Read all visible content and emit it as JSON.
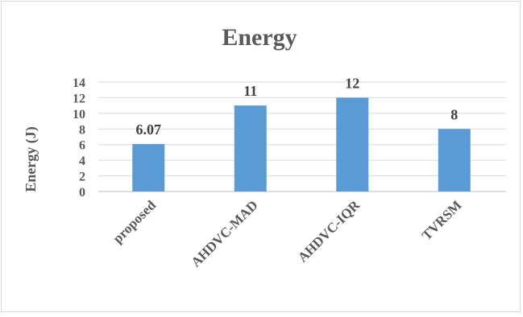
{
  "chart_data": {
    "type": "bar",
    "title": "Energy",
    "ylabel": "Energy (J)",
    "xlabel": "",
    "categories": [
      "proposed",
      "AHDVC-MAD",
      "AHDVC-IQR",
      "TVRSM"
    ],
    "values": [
      6.07,
      11,
      12,
      8
    ],
    "data_labels": [
      "6.07",
      "11",
      "12",
      "8"
    ],
    "ylim": [
      0,
      14
    ],
    "yticks": [
      0,
      2,
      4,
      6,
      8,
      10,
      12,
      14
    ],
    "grid": true,
    "legend": "none",
    "colors": {
      "bar": "#5b9bd5",
      "grid": "#d9d9d9",
      "text": "#595959"
    }
  }
}
